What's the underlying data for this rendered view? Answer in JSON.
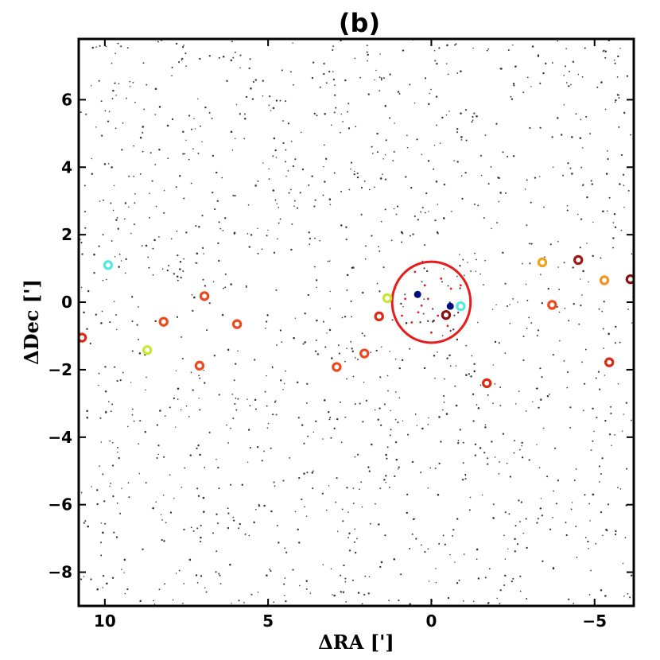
{
  "chart_data": {
    "type": "scatter",
    "title": "(b)",
    "xlabel": "ΔRA [']",
    "ylabel": "ΔDec [']",
    "xlim": [
      10.8,
      -6.2
    ],
    "ylim": [
      -9.0,
      7.8
    ],
    "x_ticks": [
      10,
      5,
      0,
      -5
    ],
    "x_tick_labels": [
      "10",
      "5",
      "0",
      "−5"
    ],
    "y_ticks": [
      6,
      4,
      2,
      0,
      -2,
      -4,
      -6,
      -8
    ],
    "y_tick_labels": [
      "6",
      "4",
      "2",
      "0",
      "−2",
      "−4",
      "−6",
      "−8"
    ],
    "grid": false,
    "legend": "none",
    "background_star_count": 1400,
    "circle_region": {
      "center": [
        0,
        0
      ],
      "radius": 1.2,
      "color": "#e81c1c"
    },
    "inner_points": [
      [
        0.5,
        0.9
      ],
      [
        -0.3,
        0.7
      ],
      [
        0.2,
        0.5
      ],
      [
        -0.6,
        0.4
      ],
      [
        0.8,
        0.1
      ],
      [
        0.1,
        0.1
      ],
      [
        -0.8,
        -0.1
      ],
      [
        0.4,
        -0.3
      ],
      [
        -0.2,
        -0.4
      ],
      [
        0.6,
        -0.6
      ],
      [
        -0.5,
        -0.7
      ],
      [
        0.0,
        -0.9
      ],
      [
        0.9,
        -0.4
      ],
      [
        -0.9,
        0.5
      ],
      [
        0.3,
        -0.1
      ]
    ],
    "filled_points": [
      {
        "x": 0.42,
        "y": 0.23,
        "color": "#000c80"
      },
      {
        "x": -0.58,
        "y": -0.12,
        "color": "#000c80"
      }
    ],
    "ring_points": [
      {
        "x": 9.9,
        "y": 1.1,
        "color": "#55e8e0"
      },
      {
        "x": 10.7,
        "y": -1.05,
        "color": "#dd2a14"
      },
      {
        "x": 8.7,
        "y": -1.42,
        "color": "#c8e632"
      },
      {
        "x": 8.2,
        "y": -0.58,
        "color": "#ec4a1e"
      },
      {
        "x": 6.95,
        "y": 0.18,
        "color": "#ec4a1e"
      },
      {
        "x": 7.1,
        "y": -1.88,
        "color": "#ec4a1e"
      },
      {
        "x": 5.95,
        "y": -0.65,
        "color": "#ec4a1e"
      },
      {
        "x": 2.9,
        "y": -1.92,
        "color": "#ec4a1e"
      },
      {
        "x": 2.05,
        "y": -1.52,
        "color": "#ec4a1e"
      },
      {
        "x": 1.6,
        "y": -0.42,
        "color": "#dd2a14"
      },
      {
        "x": 1.35,
        "y": 0.12,
        "color": "#c8e632"
      },
      {
        "x": -0.45,
        "y": -0.38,
        "color": "#8b1010"
      },
      {
        "x": -0.9,
        "y": -0.12,
        "color": "#55e8e0"
      },
      {
        "x": -1.7,
        "y": -2.4,
        "color": "#dd2a14"
      },
      {
        "x": -3.4,
        "y": 1.18,
        "color": "#f0a21c"
      },
      {
        "x": -3.7,
        "y": -0.08,
        "color": "#ec4a1e"
      },
      {
        "x": -4.5,
        "y": 1.25,
        "color": "#a01616"
      },
      {
        "x": -5.3,
        "y": 0.65,
        "color": "#f09424"
      },
      {
        "x": -5.45,
        "y": -1.78,
        "color": "#dd2a14"
      },
      {
        "x": -6.1,
        "y": 0.68,
        "color": "#8b1010"
      }
    ]
  }
}
